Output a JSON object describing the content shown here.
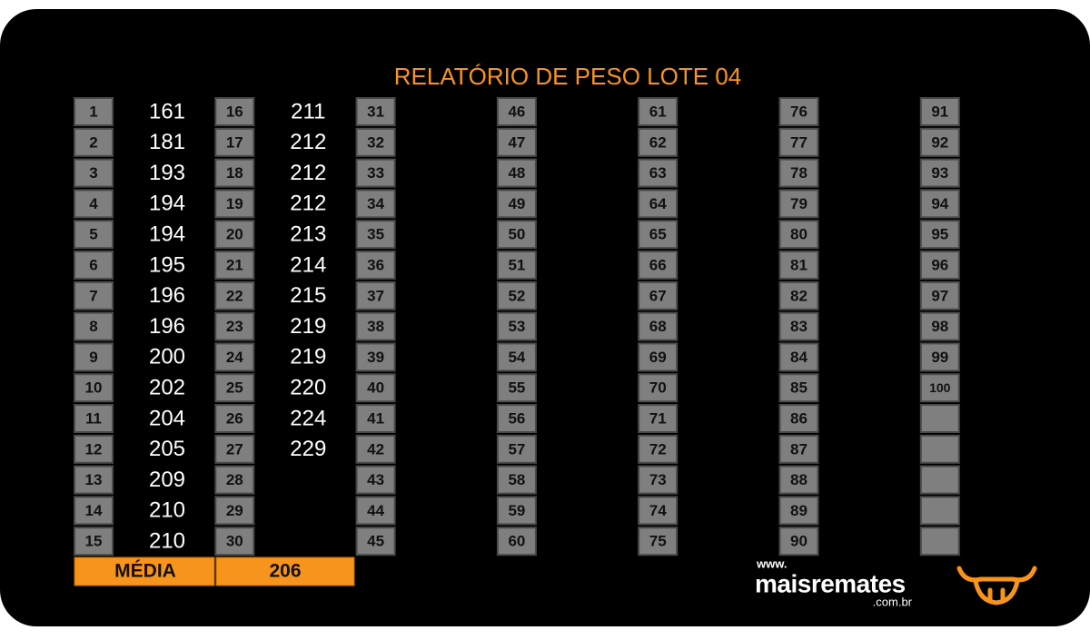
{
  "title": "RELATÓRIO DE PESO LOTE 04",
  "columns": [
    {
      "numbers": [
        1,
        2,
        3,
        4,
        5,
        6,
        7,
        8,
        9,
        10,
        11,
        12,
        13,
        14,
        15
      ],
      "weights": [
        161,
        181,
        193,
        194,
        194,
        195,
        196,
        196,
        200,
        202,
        204,
        205,
        209,
        210,
        210
      ]
    },
    {
      "numbers": [
        16,
        17,
        18,
        19,
        20,
        21,
        22,
        23,
        24,
        25,
        26,
        27,
        28,
        29,
        30
      ],
      "weights": [
        211,
        212,
        212,
        212,
        213,
        214,
        215,
        219,
        219,
        220,
        224,
        229
      ]
    },
    {
      "numbers": [
        31,
        32,
        33,
        34,
        35,
        36,
        37,
        38,
        39,
        40,
        41,
        42,
        43,
        44,
        45
      ]
    },
    {
      "numbers": [
        46,
        47,
        48,
        49,
        50,
        51,
        52,
        53,
        54,
        55,
        56,
        57,
        58,
        59,
        60
      ]
    },
    {
      "numbers": [
        61,
        62,
        63,
        64,
        65,
        66,
        67,
        68,
        69,
        70,
        71,
        72,
        73,
        74,
        75
      ]
    },
    {
      "numbers": [
        76,
        77,
        78,
        79,
        80,
        81,
        82,
        83,
        84,
        85,
        86,
        87,
        88,
        89,
        90
      ]
    },
    {
      "numbers": [
        91,
        92,
        93,
        94,
        95,
        96,
        97,
        98,
        99,
        100
      ]
    }
  ],
  "average": {
    "label": "MÉDIA",
    "value": 206
  },
  "logo": {
    "prefix": "www.",
    "name": "maisremates",
    "suffix": ".com.br"
  }
}
